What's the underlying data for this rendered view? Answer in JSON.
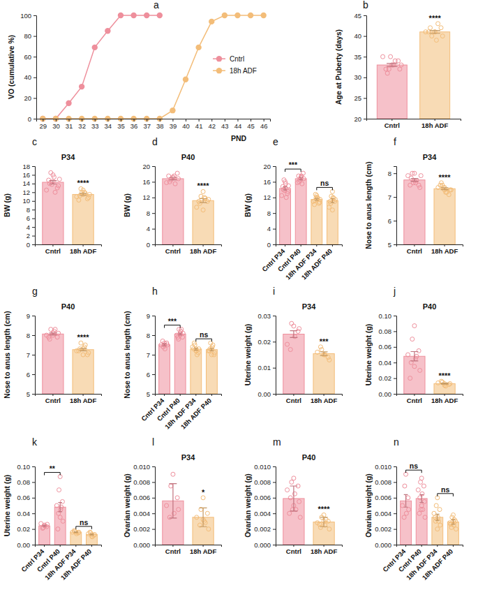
{
  "chart_data": [
    {
      "type": "line",
      "panel_label": "a",
      "y_label": "VO (cumulative %)",
      "x_label": "PND",
      "x": [
        29,
        30,
        31,
        32,
        33,
        34,
        35,
        36,
        37,
        38,
        39,
        40,
        41,
        42,
        43,
        44,
        45,
        46
      ],
      "series": [
        {
          "name": "Cntrl",
          "color": "#ee8f9c",
          "marker": "circle",
          "line_style": "solid",
          "values": [
            0,
            0,
            15,
            31,
            69,
            85,
            100,
            100,
            100,
            100,
            null,
            null,
            null,
            null,
            null,
            null,
            null,
            null
          ]
        },
        {
          "name": "18h ADF",
          "color": "#f3bd79",
          "marker": "circle",
          "line_style": "solid",
          "values": [
            0,
            0,
            0,
            0,
            0,
            0,
            0,
            0,
            0,
            0,
            8,
            38,
            69,
            94,
            100,
            100,
            100,
            100
          ]
        }
      ],
      "xlim": [
        28.5,
        46.5
      ],
      "xticks": [
        29,
        30,
        31,
        32,
        33,
        34,
        35,
        36,
        37,
        38,
        39,
        40,
        41,
        42,
        43,
        44,
        45,
        46
      ],
      "ylim": [
        0,
        100
      ],
      "yticks": [
        0,
        20,
        40,
        60,
        80,
        100
      ],
      "legend": "right"
    },
    {
      "type": "bar",
      "panel_label": "b",
      "y_label": "Age at Puberty (days)",
      "categories": [
        "Cntrl",
        "18h ADF"
      ],
      "values": [
        33.0,
        41.0
      ],
      "errors": [
        0.35,
        0.35
      ],
      "points": [
        [
          33,
          32,
          34,
          35,
          33,
          31,
          32,
          33,
          34,
          32,
          33,
          35
        ],
        [
          41,
          40,
          42,
          41,
          39,
          42,
          40,
          41,
          43,
          41
        ]
      ],
      "colors": [
        "#ee8f9c",
        "#f3bd79"
      ],
      "ylim": [
        20,
        45
      ],
      "yticks": [
        20,
        25,
        30,
        35,
        40,
        45
      ],
      "annotations": [
        {
          "text": "****",
          "category": 1
        }
      ]
    },
    {
      "type": "bar",
      "panel_label": "c",
      "title": "P34",
      "y_label": "BW (g)",
      "categories": [
        "Cntrl",
        "18h ADF"
      ],
      "values": [
        14.3,
        11.5
      ],
      "errors": [
        0.4,
        0.25
      ],
      "points": [
        [
          14.5,
          16.5,
          13,
          12.5,
          15.5,
          14,
          13.5,
          16,
          12,
          14.8,
          15,
          13.8
        ],
        [
          11.5,
          12.8,
          10.5,
          11,
          12,
          11.2,
          10.8,
          12.5,
          11.8,
          10.2,
          11.5,
          12
        ]
      ],
      "colors": [
        "#ee8f9c",
        "#f3bd79"
      ],
      "ylim": [
        0,
        18
      ],
      "yticks": [
        0,
        2,
        4,
        6,
        8,
        10,
        12,
        14,
        16,
        18
      ],
      "annotations": [
        {
          "text": "****",
          "category": 1
        }
      ]
    },
    {
      "type": "bar",
      "panel_label": "d",
      "title": "P40",
      "y_label": "BW (g)",
      "categories": [
        "Cntrl",
        "18h ADF"
      ],
      "values": [
        16.8,
        11.2
      ],
      "errors": [
        0.3,
        0.5
      ],
      "points": [
        [
          17,
          16.5,
          18.2,
          15.8,
          17.5,
          16,
          16.8,
          17.2,
          15.5,
          17.5
        ],
        [
          13.5,
          12.3,
          11,
          9.5,
          12,
          10.5,
          11.5,
          8.8,
          11.8,
          11
        ]
      ],
      "colors": [
        "#ee8f9c",
        "#f3bd79"
      ],
      "ylim": [
        0,
        20
      ],
      "yticks": [
        0,
        4,
        8,
        12,
        16,
        20
      ],
      "annotations": [
        {
          "text": "****",
          "category": 1
        }
      ]
    },
    {
      "type": "bar",
      "panel_label": "e",
      "y_label": "BW (g)",
      "categories": [
        "Cntrl P34",
        "Cntrl P40",
        "18h ADF P34",
        "18h ADF P40"
      ],
      "values": [
        14.3,
        16.8,
        11.5,
        11.2
      ],
      "errors": [
        0.4,
        0.3,
        0.25,
        0.5
      ],
      "points": [
        [
          14.5,
          16.5,
          13,
          12.5,
          15.5,
          14,
          13.5,
          16,
          12,
          14.8,
          15,
          13.8
        ],
        [
          17,
          16.5,
          18.2,
          15.8,
          17.5,
          16,
          16.8,
          17.2,
          15.5,
          17.5
        ],
        [
          11.5,
          12.8,
          10.5,
          11,
          12,
          11.2,
          10.8,
          12.5,
          11.8,
          10.2,
          11.5,
          12
        ],
        [
          13.5,
          12.3,
          11,
          9.5,
          12,
          10.5,
          11.5,
          8.8,
          11.8,
          11
        ]
      ],
      "colors": [
        "#ee8f9c",
        "#ee8f9c",
        "#f3bd79",
        "#f3bd79"
      ],
      "ylim": [
        0,
        20
      ],
      "yticks": [
        0,
        4,
        8,
        12,
        16,
        20
      ],
      "annotations": [
        {
          "text": "***",
          "from": 0,
          "to": 1
        },
        {
          "text": "ns",
          "from": 2,
          "to": 3
        }
      ]
    },
    {
      "type": "bar",
      "panel_label": "f",
      "title": "P34",
      "y_label": "Nose to anus length (cm)",
      "categories": [
        "Cntrl",
        "18h ADF"
      ],
      "values": [
        7.72,
        7.35
      ],
      "errors": [
        0.06,
        0.04
      ],
      "points": [
        [
          7.7,
          8.0,
          7.5,
          7.9,
          7.6,
          7.8,
          7.4,
          8.0,
          7.7,
          7.5,
          7.9,
          7.6
        ],
        [
          7.3,
          7.5,
          7.1,
          7.4,
          7.2,
          7.6,
          7.3,
          7.4,
          7.2,
          7.5,
          7.3,
          7.4
        ]
      ],
      "colors": [
        "#ee8f9c",
        "#f3bd79"
      ],
      "ylim": [
        5,
        8.3
      ],
      "yticks": [
        5,
        6,
        7,
        8
      ],
      "annotations": [
        {
          "text": "****",
          "category": 1
        }
      ]
    },
    {
      "type": "bar",
      "panel_label": "g",
      "title": "P40",
      "y_label": "Nose to anus length (cm)",
      "categories": [
        "Cntrl",
        "18h ADF"
      ],
      "values": [
        8.06,
        7.26
      ],
      "errors": [
        0.05,
        0.06
      ],
      "points": [
        [
          8.1,
          8.3,
          7.9,
          8.0,
          8.2,
          7.8,
          8.1,
          8.0,
          8.3,
          7.9
        ],
        [
          7.3,
          7.6,
          7.0,
          7.2,
          7.4,
          7.3,
          7.1,
          7.0,
          7.5,
          7.2
        ]
      ],
      "colors": [
        "#ee8f9c",
        "#f3bd79"
      ],
      "ylim": [
        5,
        9
      ],
      "yticks": [
        5,
        6,
        7,
        8,
        9
      ],
      "annotations": [
        {
          "text": "****",
          "category": 1
        }
      ]
    },
    {
      "type": "bar",
      "panel_label": "h",
      "y_label": "Nose to anus length (cm)",
      "categories": [
        "Cntrl P34",
        "Cntrl P40",
        "18h ADF P34",
        "18h ADF P40"
      ],
      "values": [
        7.51,
        8.06,
        7.29,
        7.26
      ],
      "errors": [
        0.05,
        0.05,
        0.05,
        0.06
      ],
      "points": [
        [
          7.5,
          7.4,
          7.6,
          7.5,
          7.3,
          7.7,
          7.5,
          7.6
        ],
        [
          8.1,
          8.3,
          7.9,
          8.0,
          8.2,
          7.8,
          8.1,
          8.0,
          8.3,
          7.9
        ],
        [
          7.3,
          7.5,
          7.1,
          7.4,
          7.2,
          7.6,
          7.3,
          7.2,
          7.0,
          7.3
        ],
        [
          7.3,
          7.6,
          7.0,
          7.2,
          7.4,
          7.3,
          7.1,
          7.0,
          7.5,
          7.2
        ]
      ],
      "colors": [
        "#ee8f9c",
        "#ee8f9c",
        "#f3bd79",
        "#f3bd79"
      ],
      "ylim": [
        5,
        9
      ],
      "yticks": [
        5,
        6,
        7,
        8,
        9
      ],
      "annotations": [
        {
          "text": "***",
          "from": 0,
          "to": 1
        },
        {
          "text": "ns",
          "from": 2,
          "to": 3
        }
      ]
    },
    {
      "type": "bar",
      "panel_label": "i",
      "title": "P34",
      "y_label": "Uterine weight (g)",
      "categories": [
        "Cntrl",
        "18h ADF"
      ],
      "values": [
        0.0229,
        0.0154
      ],
      "errors": [
        0.0013,
        0.0007
      ],
      "points": [
        [
          0.026,
          0.027,
          0.024,
          0.019,
          0.022,
          0.017,
          0.025
        ],
        [
          0.015,
          0.017,
          0.014,
          0.016,
          0.015,
          0.018,
          0.013
        ]
      ],
      "colors": [
        "#ee8f9c",
        "#f3bd79"
      ],
      "ylim": [
        0,
        0.03
      ],
      "yticks": [
        {
          "value": 0,
          "label": "0.00"
        },
        0.01,
        0.02,
        0.03
      ],
      "annotations": [
        {
          "text": "***",
          "category": 1
        }
      ]
    },
    {
      "type": "bar",
      "panel_label": "j",
      "title": "P40",
      "y_label": "Uterine weight (g)",
      "categories": [
        "Cntrl",
        "18h ADF"
      ],
      "values": [
        0.048,
        0.013
      ],
      "errors": [
        0.006,
        0.0007
      ],
      "points": [
        [
          0.087,
          0.07,
          0.055,
          0.05,
          0.045,
          0.04,
          0.03,
          0.035,
          0.048,
          0.02
        ],
        [
          0.013,
          0.015,
          0.012,
          0.014,
          0.01,
          0.016,
          0.013,
          0.011
        ]
      ],
      "colors": [
        "#ee8f9c",
        "#f3bd79"
      ],
      "ylim": [
        0,
        0.1
      ],
      "yticks": [
        {
          "value": 0,
          "label": "0.00"
        },
        0.02,
        0.04,
        0.06,
        0.08,
        {
          "value": 0.1,
          "label": "0.10"
        }
      ],
      "annotations": [
        {
          "text": "****",
          "category": 1
        }
      ]
    },
    {
      "type": "bar",
      "panel_label": "k",
      "y_label": "Uterine weight (g)",
      "categories": [
        "Cntrl P34",
        "Cntrl P40",
        "18h ADF P34",
        "18h ADF P40"
      ],
      "values": [
        0.024,
        0.048,
        0.016,
        0.013
      ],
      "errors": [
        0.0008,
        0.006,
        0.0005,
        0.0007
      ],
      "points": [
        [
          0.025,
          0.022,
          0.023,
          0.027,
          0.024,
          0.021,
          0.026
        ],
        [
          0.087,
          0.07,
          0.055,
          0.05,
          0.045,
          0.04,
          0.03,
          0.035,
          0.048,
          0.02
        ],
        [
          0.016,
          0.017,
          0.015,
          0.016,
          0.014,
          0.018,
          0.016
        ],
        [
          0.013,
          0.015,
          0.012,
          0.014,
          0.01,
          0.016,
          0.013,
          0.011
        ]
      ],
      "colors": [
        "#ee8f9c",
        "#ee8f9c",
        "#f3bd79",
        "#f3bd79"
      ],
      "ylim": [
        0,
        0.1
      ],
      "yticks": [
        {
          "value": 0,
          "label": "0.00"
        },
        0.02,
        0.04,
        0.06,
        0.08,
        {
          "value": 0.1,
          "label": "0.10"
        }
      ],
      "annotations": [
        {
          "text": "**",
          "from": 0,
          "to": 1
        },
        {
          "text": "ns",
          "from": 2,
          "to": 3
        }
      ]
    },
    {
      "type": "bar",
      "panel_label": "l",
      "title": "P34",
      "y_label": "Ovarian weight (g)",
      "categories": [
        "Cntrl",
        "18h ADF"
      ],
      "values": [
        0.0056,
        0.0035
      ],
      "errors": [
        0.0022,
        0.0012
      ],
      "points": [
        [
          0.009,
          0.0075,
          0.006,
          0.005,
          0.004,
          0.0035,
          0.0045
        ],
        [
          0.006,
          0.0045,
          0.004,
          0.0035,
          0.003,
          0.0025,
          0.002,
          0.0032,
          0.0028
        ]
      ],
      "colors": [
        "#ee8f9c",
        "#f3bd79"
      ],
      "ylim": [
        0,
        0.01
      ],
      "yticks": [
        {
          "value": 0,
          "label": "0.000"
        },
        0.002,
        0.004,
        0.006,
        0.008,
        {
          "value": 0.01,
          "label": "0.010"
        }
      ],
      "annotations": [
        {
          "text": "*",
          "category": 1
        }
      ]
    },
    {
      "type": "bar",
      "panel_label": "m",
      "title": "P40",
      "y_label": "Ovarian weight (g)",
      "categories": [
        "Cntrl",
        "18h ADF"
      ],
      "values": [
        0.0059,
        0.0029
      ],
      "errors": [
        0.0016,
        0.0006
      ],
      "points": [
        [
          0.0085,
          0.008,
          0.0075,
          0.007,
          0.0065,
          0.006,
          0.0055,
          0.005,
          0.0045,
          0.004,
          0.0035,
          0.0045
        ],
        [
          0.0038,
          0.0035,
          0.003,
          0.0028,
          0.0025,
          0.0022,
          0.002,
          0.003,
          0.0032,
          0.0026
        ]
      ],
      "colors": [
        "#ee8f9c",
        "#f3bd79"
      ],
      "ylim": [
        0,
        0.01
      ],
      "yticks": [
        {
          "value": 0,
          "label": "0.000"
        },
        0.002,
        0.004,
        0.006,
        0.008,
        {
          "value": 0.01,
          "label": "0.010"
        }
      ],
      "annotations": [
        {
          "text": "****",
          "category": 1
        }
      ]
    },
    {
      "type": "bar",
      "panel_label": "n",
      "y_label": "Ovarian weight (g)",
      "categories": [
        "Cntrl P34",
        "Cntrl P40",
        "18h ADF P34",
        "18h ADF P40"
      ],
      "values": [
        0.0056,
        0.0059,
        0.0035,
        0.0029
      ],
      "errors": [
        0.0008,
        0.0005,
        0.0004,
        0.0003
      ],
      "points": [
        [
          0.009,
          0.0075,
          0.006,
          0.005,
          0.004,
          0.0035,
          0.0045
        ],
        [
          0.0085,
          0.008,
          0.0075,
          0.007,
          0.0065,
          0.006,
          0.0055,
          0.005,
          0.0045,
          0.004,
          0.0035,
          0.0045
        ],
        [
          0.006,
          0.005,
          0.0045,
          0.004,
          0.0035,
          0.003,
          0.0025,
          0.002,
          0.003,
          0.0035
        ],
        [
          0.0038,
          0.0035,
          0.003,
          0.0028,
          0.0025,
          0.0022,
          0.002,
          0.003,
          0.0032,
          0.0026
        ]
      ],
      "colors": [
        "#ee8f9c",
        "#ee8f9c",
        "#f3bd79",
        "#f3bd79"
      ],
      "ylim": [
        0,
        0.01
      ],
      "yticks": [
        {
          "value": 0,
          "label": "0.000"
        },
        0.002,
        0.004,
        0.006,
        0.008,
        {
          "value": 0.01,
          "label": "0.010"
        }
      ],
      "annotations": [
        {
          "text": "ns",
          "from": 0,
          "to": 1
        },
        {
          "text": "ns",
          "from": 2,
          "to": 3
        }
      ]
    }
  ]
}
